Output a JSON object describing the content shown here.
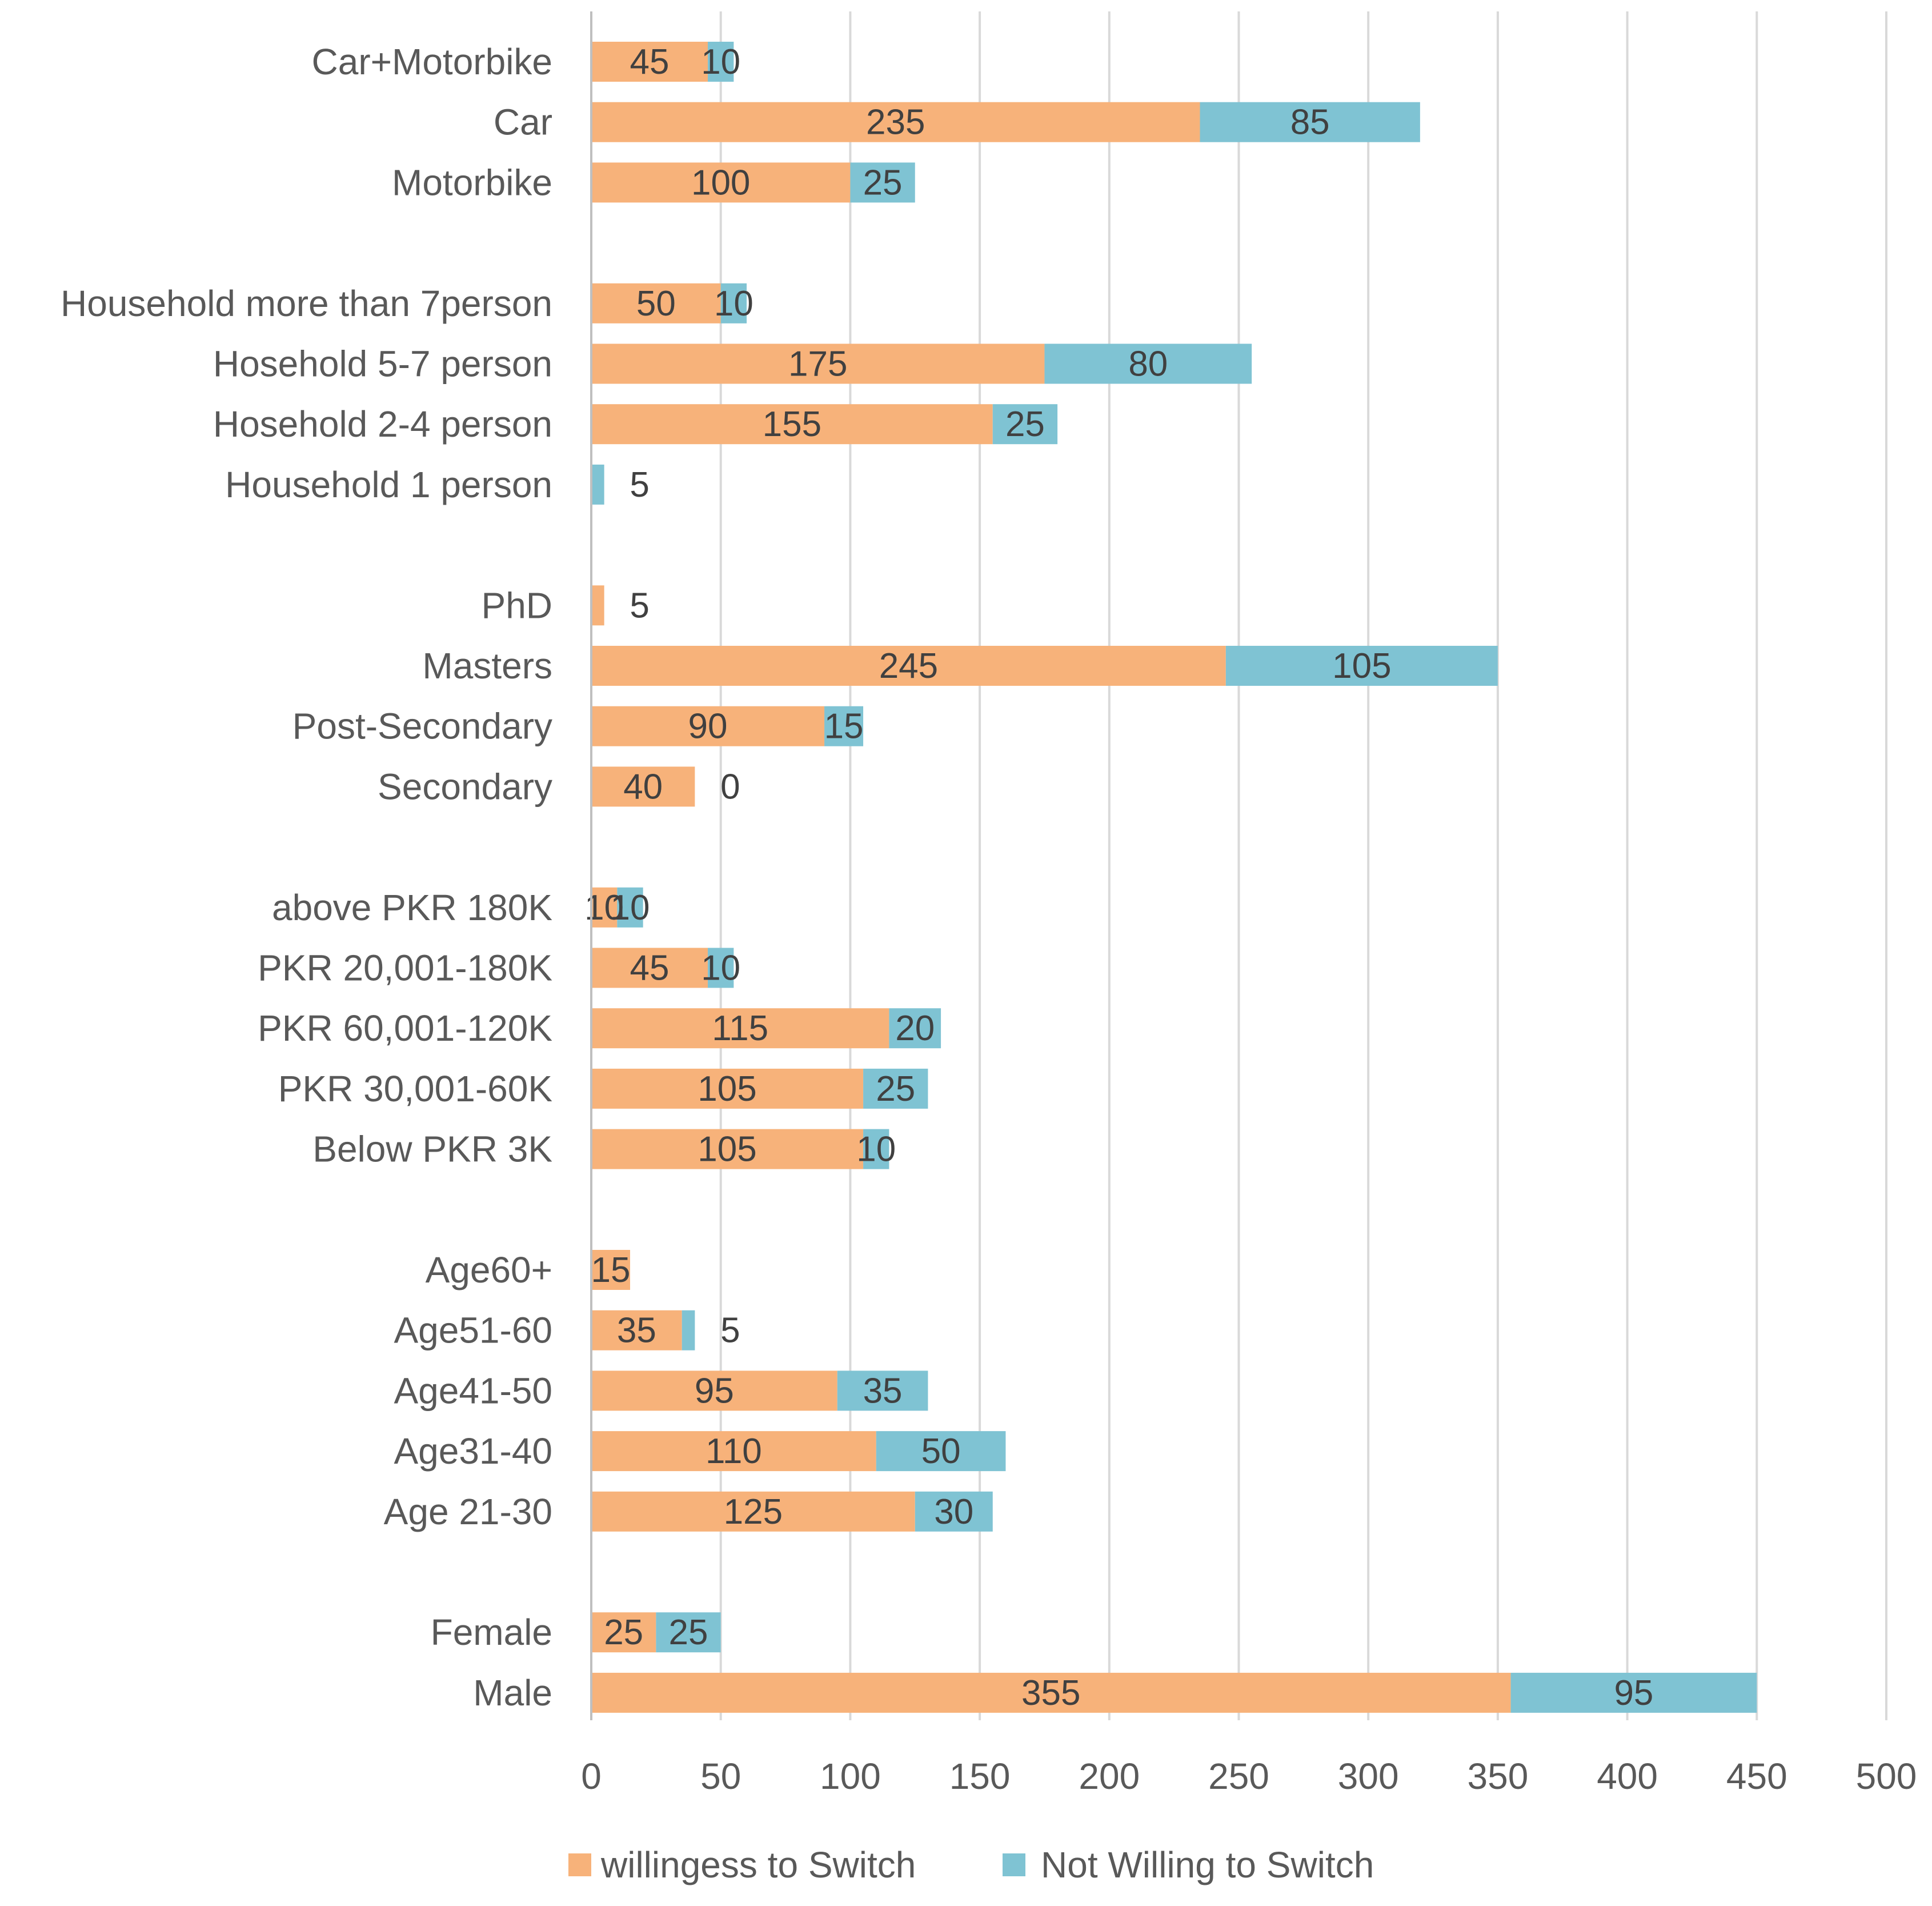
{
  "chart_data": {
    "type": "bar",
    "orientation": "horizontal",
    "stacked": true,
    "title": "",
    "xlabel": "",
    "ylabel": "",
    "xlim": [
      0,
      500
    ],
    "x_ticks": [
      "0",
      "50",
      "100",
      "150",
      "200",
      "250",
      "300",
      "350",
      "400",
      "450",
      "500"
    ],
    "grid": true,
    "legend_position": "bottom",
    "categories": [
      "Car+Motorbike",
      "Car",
      "Motorbike",
      "Household more than 7person",
      "Hosehold 5-7 person",
      "Hosehold 2-4 person",
      "Household 1 person",
      "PhD",
      "Masters",
      "Post-Secondary",
      "Secondary",
      "above PKR 180K",
      "PKR 20,001-180K",
      "PKR 60,001-120K",
      "PKR 30,001-60K",
      "Below PKR 3K",
      "Age60+",
      "Age51-60",
      "Age41-50",
      "Age31-40",
      "Age 21-30",
      "Female",
      "Male"
    ],
    "group_sizes": [
      3,
      4,
      4,
      5,
      5,
      2
    ],
    "series": [
      {
        "name": "willingess to Switch",
        "color": "#f7b27a",
        "values": [
          45,
          235,
          100,
          50,
          175,
          155,
          0,
          5,
          245,
          90,
          40,
          10,
          45,
          115,
          105,
          105,
          15,
          35,
          95,
          110,
          125,
          25,
          355
        ],
        "labels": [
          "45",
          "235",
          "100",
          "50",
          "175",
          "155",
          "",
          "5",
          "245",
          "90",
          "40",
          "10",
          "45",
          "115",
          "105",
          "105",
          "15",
          "35",
          "95",
          "110",
          "125",
          "25",
          "355"
        ]
      },
      {
        "name": "Not Willing to Switch",
        "color": "#7fc3d3",
        "values": [
          10,
          85,
          25,
          10,
          80,
          25,
          5,
          0,
          105,
          15,
          0,
          10,
          10,
          20,
          25,
          10,
          0,
          5,
          35,
          50,
          30,
          25,
          95
        ],
        "labels": [
          "10",
          "85",
          "25",
          "10",
          "80",
          "25",
          "5",
          "",
          "105",
          "15",
          "0",
          "10",
          "10",
          "20",
          "25",
          "10",
          "",
          "5",
          "35",
          "50",
          "30",
          "25",
          "95"
        ]
      }
    ]
  }
}
